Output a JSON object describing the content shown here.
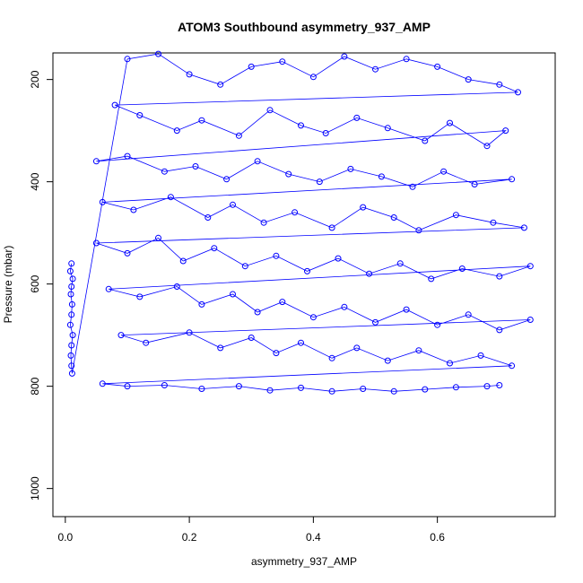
{
  "chart_data": {
    "type": "scatter",
    "title": "ATOM3 Southbound asymmetry_937_AMP",
    "xlabel": "asymmetry_937_AMP",
    "ylabel": "Pressure (mbar)",
    "xlim": [
      -0.02,
      0.79
    ],
    "ylim": [
      1055,
      148
    ],
    "y_reversed": true,
    "x_ticks": [
      0.0,
      0.2,
      0.4,
      0.6
    ],
    "x_tick_labels": [
      "0.0",
      "0.2",
      "0.4",
      "0.6"
    ],
    "y_ticks": [
      200,
      400,
      600,
      800,
      1000
    ],
    "y_tick_labels": [
      "200",
      "400",
      "600",
      "800",
      "1000"
    ],
    "series_color": "#0000ff",
    "marker": "open-circle",
    "connected_lines": true,
    "legend": "none",
    "grid": false,
    "series": [
      {
        "name": "",
        "points": [
          [
            0.01,
            560
          ],
          [
            0.008,
            575
          ],
          [
            0.012,
            590
          ],
          [
            0.01,
            605
          ],
          [
            0.009,
            620
          ],
          [
            0.011,
            640
          ],
          [
            0.01,
            660
          ],
          [
            0.008,
            680
          ],
          [
            0.012,
            700
          ],
          [
            0.01,
            720
          ],
          [
            0.009,
            740
          ],
          [
            0.01,
            760
          ],
          [
            0.011,
            775
          ],
          [
            0.1,
            160
          ],
          [
            0.15,
            150
          ],
          [
            0.2,
            190
          ],
          [
            0.25,
            210
          ],
          [
            0.3,
            175
          ],
          [
            0.35,
            165
          ],
          [
            0.4,
            195
          ],
          [
            0.45,
            155
          ],
          [
            0.5,
            180
          ],
          [
            0.55,
            160
          ],
          [
            0.6,
            175
          ],
          [
            0.65,
            200
          ],
          [
            0.7,
            210
          ],
          [
            0.73,
            225
          ],
          [
            0.08,
            250
          ],
          [
            0.12,
            270
          ],
          [
            0.18,
            300
          ],
          [
            0.22,
            280
          ],
          [
            0.28,
            310
          ],
          [
            0.33,
            260
          ],
          [
            0.38,
            290
          ],
          [
            0.42,
            305
          ],
          [
            0.47,
            275
          ],
          [
            0.52,
            295
          ],
          [
            0.58,
            320
          ],
          [
            0.62,
            285
          ],
          [
            0.68,
            330
          ],
          [
            0.71,
            300
          ],
          [
            0.05,
            360
          ],
          [
            0.1,
            350
          ],
          [
            0.16,
            380
          ],
          [
            0.21,
            370
          ],
          [
            0.26,
            395
          ],
          [
            0.31,
            360
          ],
          [
            0.36,
            385
          ],
          [
            0.41,
            400
          ],
          [
            0.46,
            375
          ],
          [
            0.51,
            390
          ],
          [
            0.56,
            410
          ],
          [
            0.61,
            380
          ],
          [
            0.66,
            405
          ],
          [
            0.72,
            395
          ],
          [
            0.06,
            440
          ],
          [
            0.11,
            455
          ],
          [
            0.17,
            430
          ],
          [
            0.23,
            470
          ],
          [
            0.27,
            445
          ],
          [
            0.32,
            480
          ],
          [
            0.37,
            460
          ],
          [
            0.43,
            490
          ],
          [
            0.48,
            450
          ],
          [
            0.53,
            470
          ],
          [
            0.57,
            495
          ],
          [
            0.63,
            465
          ],
          [
            0.69,
            480
          ],
          [
            0.74,
            490
          ],
          [
            0.05,
            520
          ],
          [
            0.1,
            540
          ],
          [
            0.15,
            510
          ],
          [
            0.19,
            555
          ],
          [
            0.24,
            530
          ],
          [
            0.29,
            565
          ],
          [
            0.34,
            545
          ],
          [
            0.39,
            575
          ],
          [
            0.44,
            550
          ],
          [
            0.49,
            580
          ],
          [
            0.54,
            560
          ],
          [
            0.59,
            590
          ],
          [
            0.64,
            570
          ],
          [
            0.7,
            585
          ],
          [
            0.75,
            565
          ],
          [
            0.07,
            610
          ],
          [
            0.12,
            625
          ],
          [
            0.18,
            605
          ],
          [
            0.22,
            640
          ],
          [
            0.27,
            620
          ],
          [
            0.31,
            655
          ],
          [
            0.35,
            635
          ],
          [
            0.4,
            665
          ],
          [
            0.45,
            645
          ],
          [
            0.5,
            675
          ],
          [
            0.55,
            650
          ],
          [
            0.6,
            680
          ],
          [
            0.65,
            660
          ],
          [
            0.7,
            690
          ],
          [
            0.75,
            670
          ],
          [
            0.09,
            700
          ],
          [
            0.13,
            715
          ],
          [
            0.2,
            695
          ],
          [
            0.25,
            725
          ],
          [
            0.3,
            705
          ],
          [
            0.34,
            735
          ],
          [
            0.38,
            715
          ],
          [
            0.43,
            745
          ],
          [
            0.47,
            725
          ],
          [
            0.52,
            750
          ],
          [
            0.57,
            730
          ],
          [
            0.62,
            755
          ],
          [
            0.67,
            740
          ],
          [
            0.72,
            760
          ],
          [
            0.06,
            795
          ],
          [
            0.1,
            800
          ],
          [
            0.16,
            798
          ],
          [
            0.22,
            805
          ],
          [
            0.28,
            800
          ],
          [
            0.33,
            808
          ],
          [
            0.38,
            803
          ],
          [
            0.43,
            810
          ],
          [
            0.48,
            805
          ],
          [
            0.53,
            810
          ],
          [
            0.58,
            806
          ],
          [
            0.63,
            802
          ],
          [
            0.68,
            800
          ],
          [
            0.7,
            798
          ]
        ]
      }
    ]
  }
}
